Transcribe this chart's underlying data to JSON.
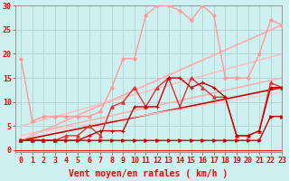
{
  "background_color": "#cff0f0",
  "grid_color": "#aacccc",
  "xlabel": "Vent moyen/en rafales ( km/h )",
  "xlim": [
    -0.5,
    23
  ],
  "ylim": [
    -0.5,
    30
  ],
  "xticks": [
    0,
    1,
    2,
    3,
    4,
    5,
    6,
    7,
    8,
    9,
    10,
    11,
    12,
    13,
    14,
    15,
    16,
    17,
    18,
    19,
    20,
    21,
    22,
    23
  ],
  "yticks": [
    0,
    5,
    10,
    15,
    20,
    25,
    30
  ],
  "lines": [
    {
      "x": [
        0,
        1,
        2,
        3,
        4,
        5,
        6,
        7,
        8,
        9,
        10,
        11,
        12,
        13,
        14,
        15,
        16,
        17,
        18,
        19,
        20,
        21,
        22,
        23
      ],
      "y": [
        2,
        2,
        2,
        2,
        2,
        2,
        2,
        2,
        2,
        2,
        2,
        2,
        2,
        2,
        2,
        2,
        2,
        2,
        2,
        2,
        2,
        2,
        7,
        7
      ],
      "color": "#cc0000",
      "lw": 1.0,
      "marker": ">",
      "ms": 2.5,
      "zorder": 4
    },
    {
      "x": [
        0,
        1,
        2,
        3,
        4,
        5,
        6,
        7,
        8,
        9,
        10,
        11,
        12,
        13,
        14,
        15,
        16,
        17,
        18,
        19,
        20,
        21,
        22,
        23
      ],
      "y": [
        2,
        2,
        2,
        2,
        2,
        2,
        3,
        4,
        4,
        4,
        9,
        9,
        9,
        15,
        15,
        13,
        14,
        13,
        11,
        3,
        3,
        4,
        13,
        13
      ],
      "color": "#cc0000",
      "lw": 1.0,
      "marker": "+",
      "ms": 3.5,
      "zorder": 4
    },
    {
      "x": [
        0,
        1,
        2,
        3,
        4,
        5,
        6,
        7,
        8,
        9,
        10,
        11,
        12,
        13,
        14,
        15,
        16,
        17,
        18,
        19,
        20,
        21,
        22,
        23
      ],
      "y": [
        2,
        2,
        2,
        2,
        3,
        3,
        5,
        3,
        9,
        10,
        13,
        9,
        13,
        15,
        9,
        15,
        13,
        11,
        11,
        3,
        3,
        4,
        14,
        13
      ],
      "color": "#dd3333",
      "lw": 1.0,
      "marker": "^",
      "ms": 2.5,
      "zorder": 3
    },
    {
      "x": [
        0,
        1,
        2,
        3,
        4,
        5,
        6,
        7,
        8,
        9,
        10,
        11,
        12,
        13,
        14,
        15,
        16,
        17,
        18,
        19,
        20,
        21,
        22,
        23
      ],
      "y": [
        19,
        6,
        7,
        7,
        7,
        7,
        7,
        8,
        13,
        19,
        19,
        28,
        30,
        30,
        29,
        27,
        30,
        28,
        15,
        15,
        15,
        20,
        27,
        26
      ],
      "color": "#ff9999",
      "lw": 1.0,
      "marker": "D",
      "ms": 2.0,
      "zorder": 3
    },
    {
      "x": [
        0,
        23
      ],
      "y": [
        2,
        13
      ],
      "color": "#cc0000",
      "lw": 1.2,
      "marker": null,
      "ms": 0,
      "zorder": 2
    },
    {
      "x": [
        0,
        23
      ],
      "y": [
        2,
        26
      ],
      "color": "#ffaaaa",
      "lw": 1.2,
      "marker": null,
      "ms": 0,
      "zorder": 2
    },
    {
      "x": [
        0,
        23
      ],
      "y": [
        5,
        20
      ],
      "color": "#ffbbbb",
      "lw": 1.0,
      "marker": null,
      "ms": 0,
      "zorder": 2
    },
    {
      "x": [
        0,
        23
      ],
      "y": [
        3,
        15
      ],
      "color": "#ffaaaa",
      "lw": 1.0,
      "marker": null,
      "ms": 0,
      "zorder": 2
    },
    {
      "x": [
        0,
        23
      ],
      "y": [
        3,
        12
      ],
      "color": "#ffcccc",
      "lw": 1.0,
      "marker": null,
      "ms": 0,
      "zorder": 2
    }
  ],
  "tick_fontsize": 6,
  "axis_fontsize": 7
}
